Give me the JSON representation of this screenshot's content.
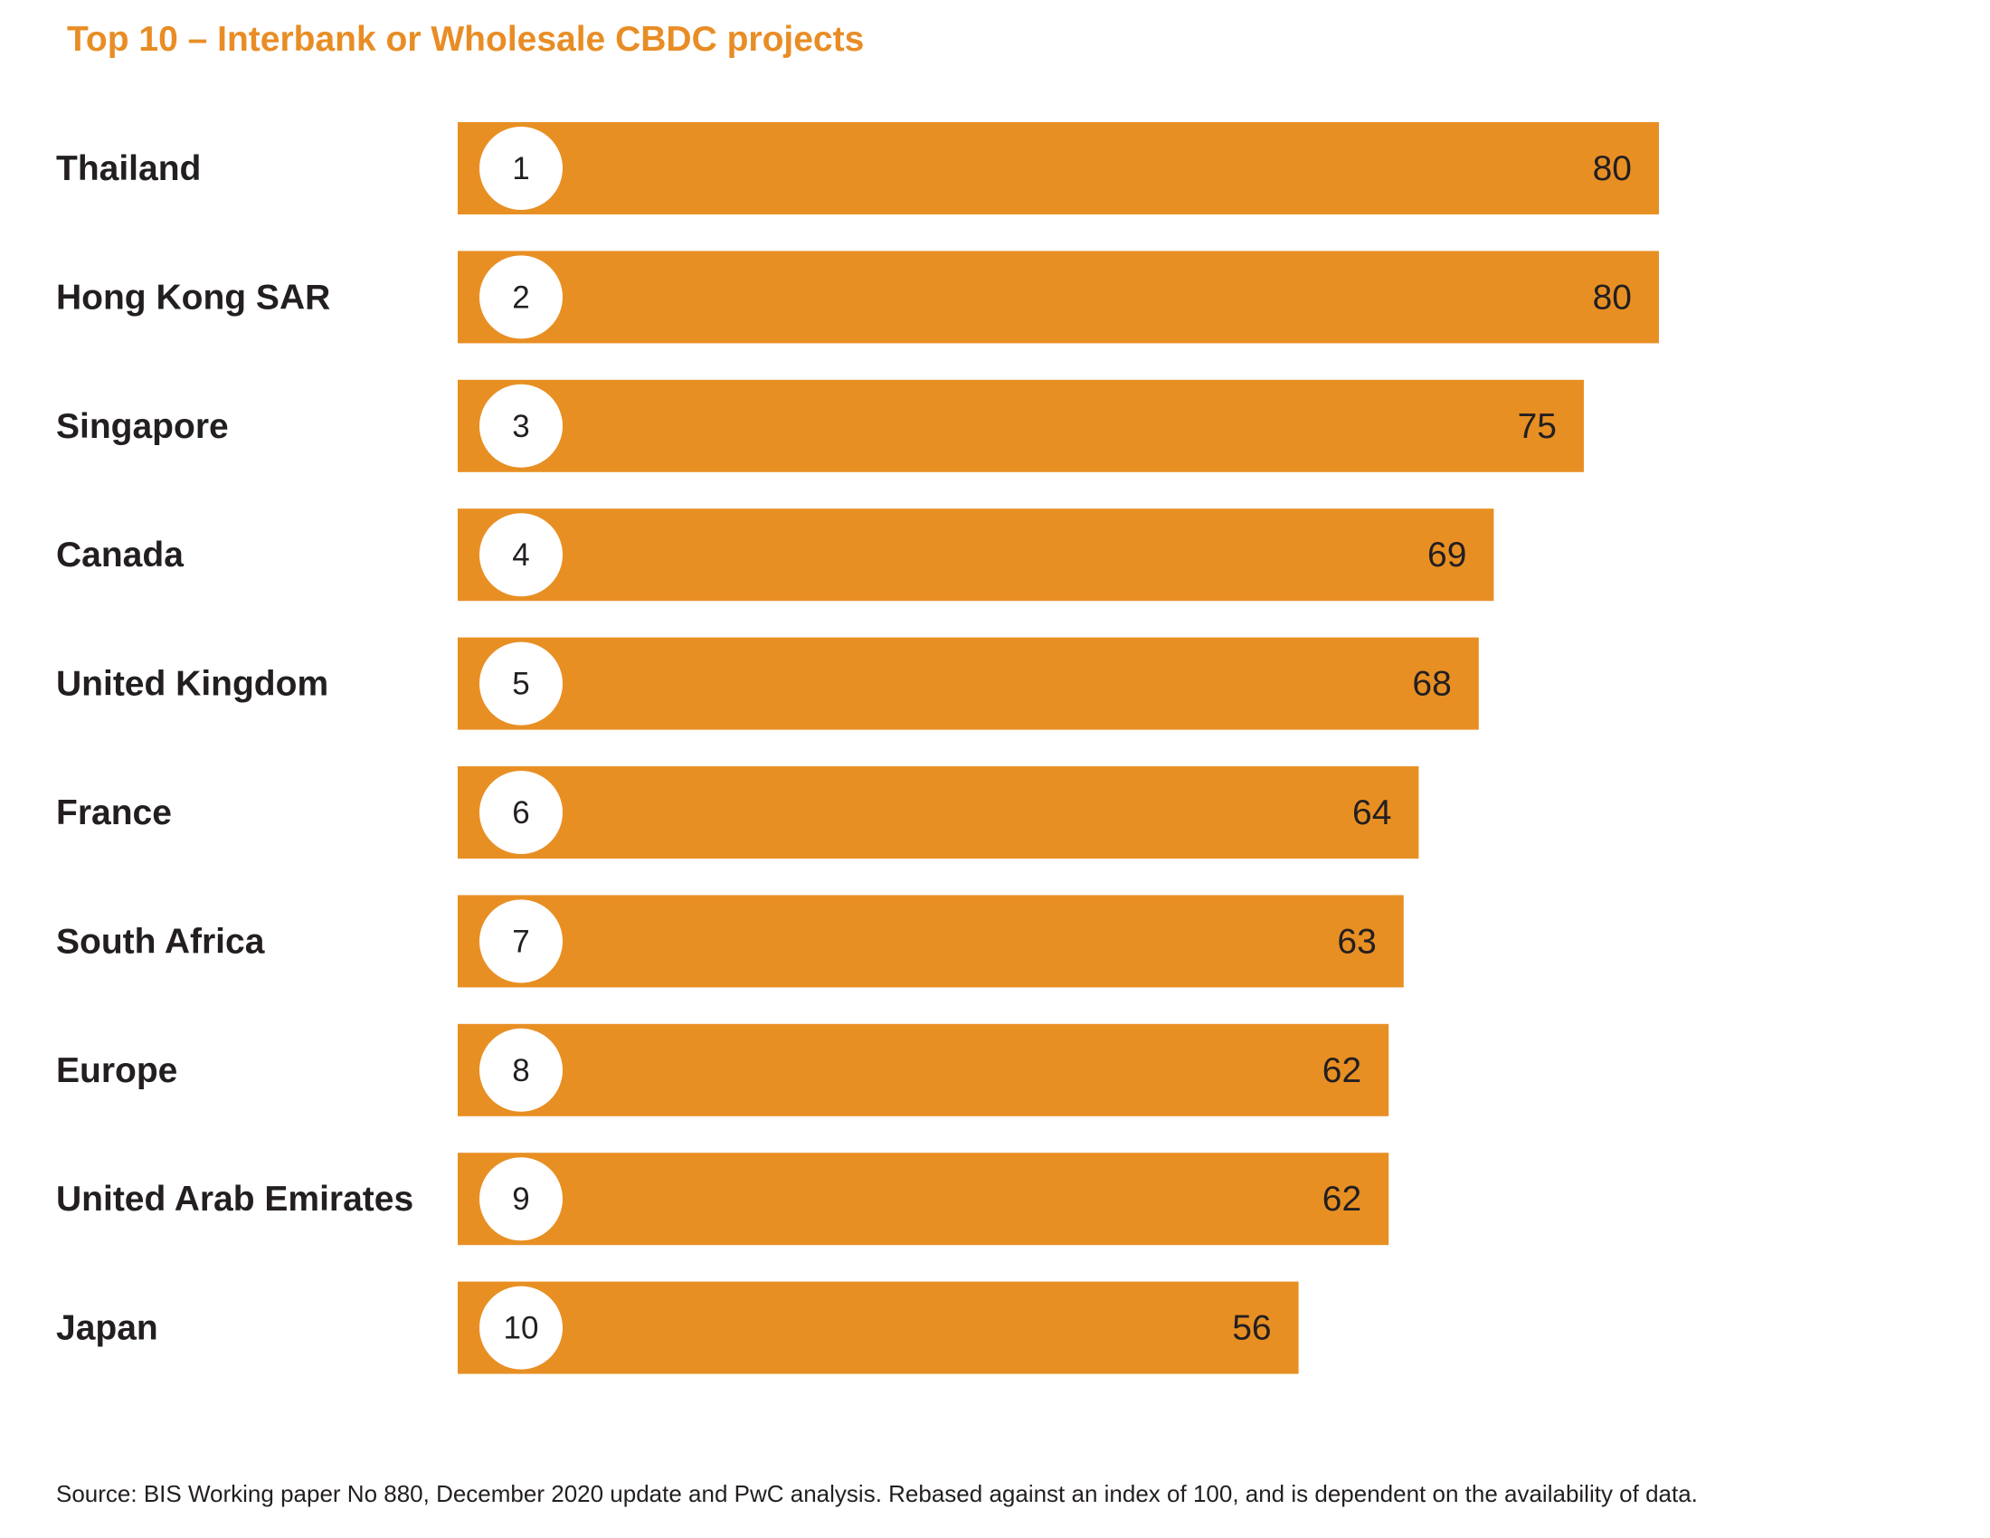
{
  "chart_data": {
    "type": "bar",
    "orientation": "horizontal",
    "title": "Top 10 – Interbank or Wholesale CBDC projects",
    "categories": [
      "Thailand",
      "Hong Kong SAR",
      "Singapore",
      "Canada",
      "United Kingdom",
      "France",
      "South Africa",
      "Europe",
      "United Arab Emirates",
      "Japan"
    ],
    "ranks": [
      "1",
      "2",
      "3",
      "4",
      "5",
      "6",
      "7",
      "8",
      "9",
      "10"
    ],
    "values": [
      80,
      80,
      75,
      69,
      68,
      64,
      63,
      62,
      62,
      56
    ],
    "xlim": [
      0,
      100
    ],
    "grid": false,
    "legend": "none",
    "colors": {
      "bar": "#e88f24",
      "title": "#e88d25",
      "rank_circle": "#ffffff",
      "text": "#231f20"
    }
  },
  "source": "Source: BIS Working paper No 880, December 2020 update and PwC analysis. Rebased against an index of 100, and is dependent on the availability of data."
}
